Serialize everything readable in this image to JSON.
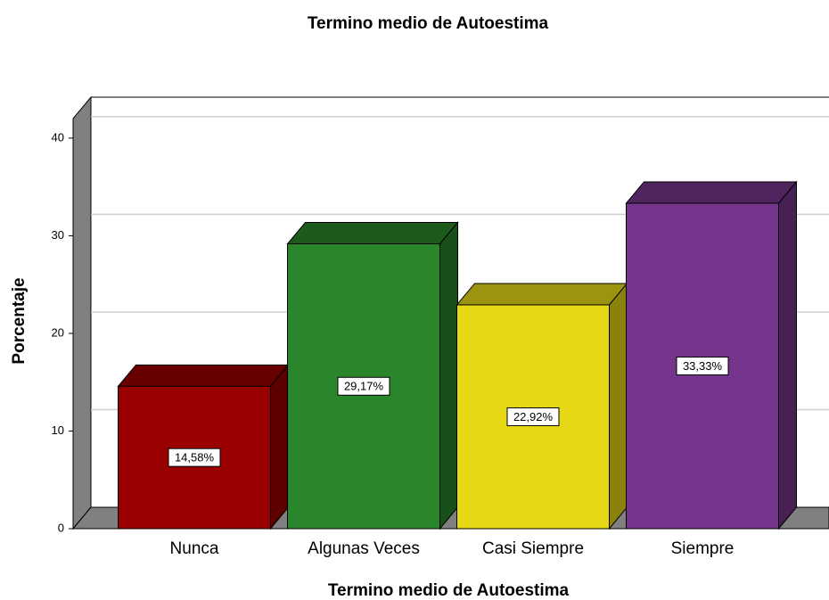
{
  "chart_data": {
    "type": "bar3d",
    "title": "Termino medio de  Autoestima",
    "x_label": "Termino medio de  Autoestima",
    "y_label": "Porcentaje",
    "categories": [
      "Nunca",
      "Algunas Veces",
      "Casi Siempre",
      "Siempre"
    ],
    "values": [
      14.58,
      29.17,
      22.92,
      33.33
    ],
    "value_labels": [
      "14,58%",
      "29,17%",
      "22,92%",
      "33,33%"
    ],
    "colors": [
      "#990000",
      "#2a862a",
      "#e6d815",
      "#76358c"
    ],
    "ylim": [
      0,
      42
    ],
    "yticks": [
      0,
      10,
      20,
      30,
      40
    ],
    "grid": true
  }
}
